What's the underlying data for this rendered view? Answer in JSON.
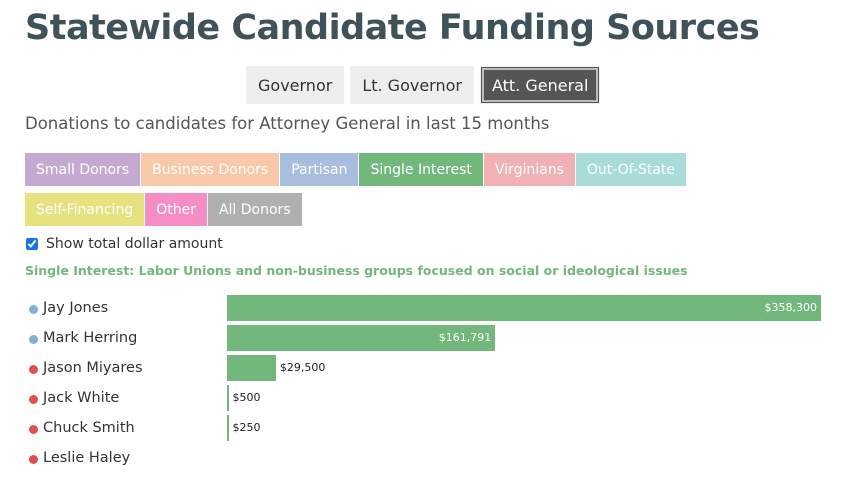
{
  "title": "Statewide Candidate Funding Sources",
  "office_tabs": [
    {
      "label": "Governor",
      "active": false
    },
    {
      "label": "Lt. Governor",
      "active": false
    },
    {
      "label": "Att. General",
      "active": true
    }
  ],
  "subtitle": "Donations to candidates for Attorney General in last 15 months",
  "filters": [
    {
      "label": "Small Donors",
      "color": "#c6a9d0",
      "active": false
    },
    {
      "label": "Business Donors",
      "color": "#f8c9a9",
      "active": false
    },
    {
      "label": "Partisan",
      "color": "#a9bedf",
      "active": false
    },
    {
      "label": "Single Interest",
      "color": "#72b77b",
      "active": true
    },
    {
      "label": "Virginians",
      "color": "#f0b2b4",
      "active": false
    },
    {
      "label": "Out-Of-State",
      "color": "#a9dbd8",
      "active": false
    },
    {
      "label": "Self-Financing",
      "color": "#e5e27f",
      "active": false
    },
    {
      "label": "Other",
      "color": "#f58ec4",
      "active": false
    },
    {
      "label": "All Donors",
      "color": "#b0b0b0",
      "active": false
    }
  ],
  "show_total": {
    "label": "Show total dollar amount",
    "checked": true
  },
  "description": "Single Interest: Labor Unions and non-business groups focused on social or ideological issues",
  "colors": {
    "accent": "#72b77b",
    "democrat": "#7fb1d3",
    "republican": "#e0504c"
  },
  "chart_data": {
    "type": "bar",
    "orientation": "horizontal",
    "categories": [
      "Jay Jones",
      "Mark Herring",
      "Jason Miyares",
      "Jack White",
      "Chuck Smith",
      "Leslie Haley"
    ],
    "values": [
      358300,
      161791,
      29500,
      500,
      250,
      0
    ],
    "value_labels": [
      "$358,300",
      "$161,791",
      "$29,500",
      "$500",
      "$250",
      ""
    ],
    "party": [
      "democrat",
      "democrat",
      "republican",
      "republican",
      "republican",
      "republican"
    ],
    "xlim": [
      0,
      358300
    ],
    "title": "",
    "xlabel": "",
    "ylabel": "",
    "grid": false,
    "legend": "none"
  }
}
